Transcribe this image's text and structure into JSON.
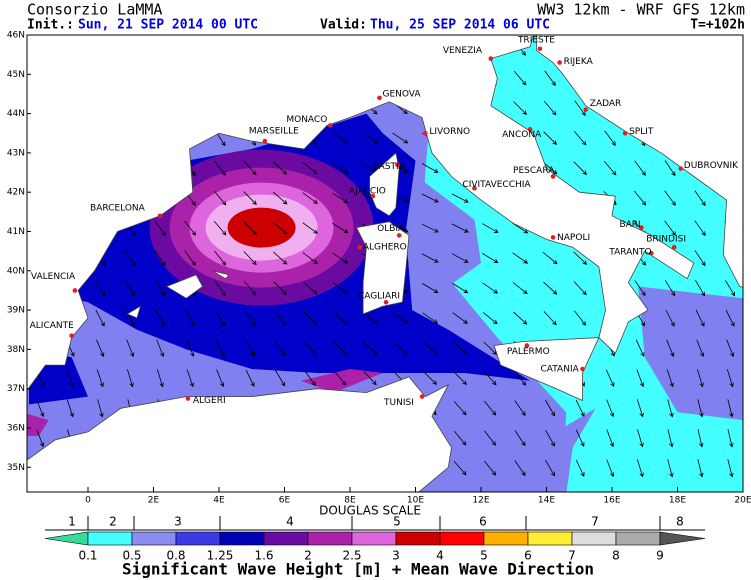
{
  "header": {
    "org": "Consorzio LaMMA",
    "title": "WW3 12km - WRF GFS 12km",
    "init_label": "Init.:",
    "init_value": "Sun, 21 SEP 2014  00 UTC",
    "valid_label": "Valid:",
    "valid_value": "Thu, 25 SEP 2014  06 UTC",
    "forecast": "T=+102h"
  },
  "map": {
    "lat_labels": [
      "46N",
      "45N",
      "44N",
      "43N",
      "42N",
      "41N",
      "40N",
      "39N",
      "38N",
      "37N",
      "36N",
      "35N"
    ],
    "lon_labels": [
      "0",
      "2E",
      "4E",
      "6E",
      "8E",
      "10E",
      "12E",
      "14E",
      "16E",
      "18E",
      "20E"
    ],
    "cities": [
      "TRIESTE",
      "VENEZIA",
      "RIJEKA",
      "GENOVA",
      "MONACO",
      "MARSEILLE",
      "LIVORNO",
      "ZADAR",
      "ANCONA",
      "SPLIT",
      "DUBROVNIK",
      "PESCARA",
      "BASTIA",
      "AJACCIO",
      "CIVITAVECCHIA",
      "BARCELONA",
      "OLBIA",
      "ALGHERO",
      "NAPOLI",
      "BARI",
      "BRINDISI",
      "TARANTO",
      "VALENCIA",
      "CAGLIARI",
      "ALICANTE",
      "PALERMO",
      "CATANIA",
      "ALGERI",
      "TUNISI"
    ]
  },
  "legend": {
    "douglas_title": "DOUGLAS SCALE",
    "douglas": [
      "1",
      "2",
      "3",
      "4",
      "5",
      "6",
      "7",
      "8"
    ],
    "bins": [
      "0.1",
      "0.5",
      "0.8",
      "1.25",
      "1.6",
      "2",
      "2.5",
      "3",
      "4",
      "5",
      "6",
      "7",
      "8",
      "9"
    ],
    "colors": [
      "#33dd99",
      "#44ffff",
      "#8c8cf5",
      "#3a3ae6",
      "#0000b4",
      "#6a0aa0",
      "#aa22aa",
      "#dd66dd",
      "#cc0000",
      "#ff0000",
      "#ffb000",
      "#ffee33",
      "#dddddd",
      "#aaaaaa",
      "#555555"
    ],
    "caption": "Significant Wave Height [m] + Mean Wave Direction"
  }
}
